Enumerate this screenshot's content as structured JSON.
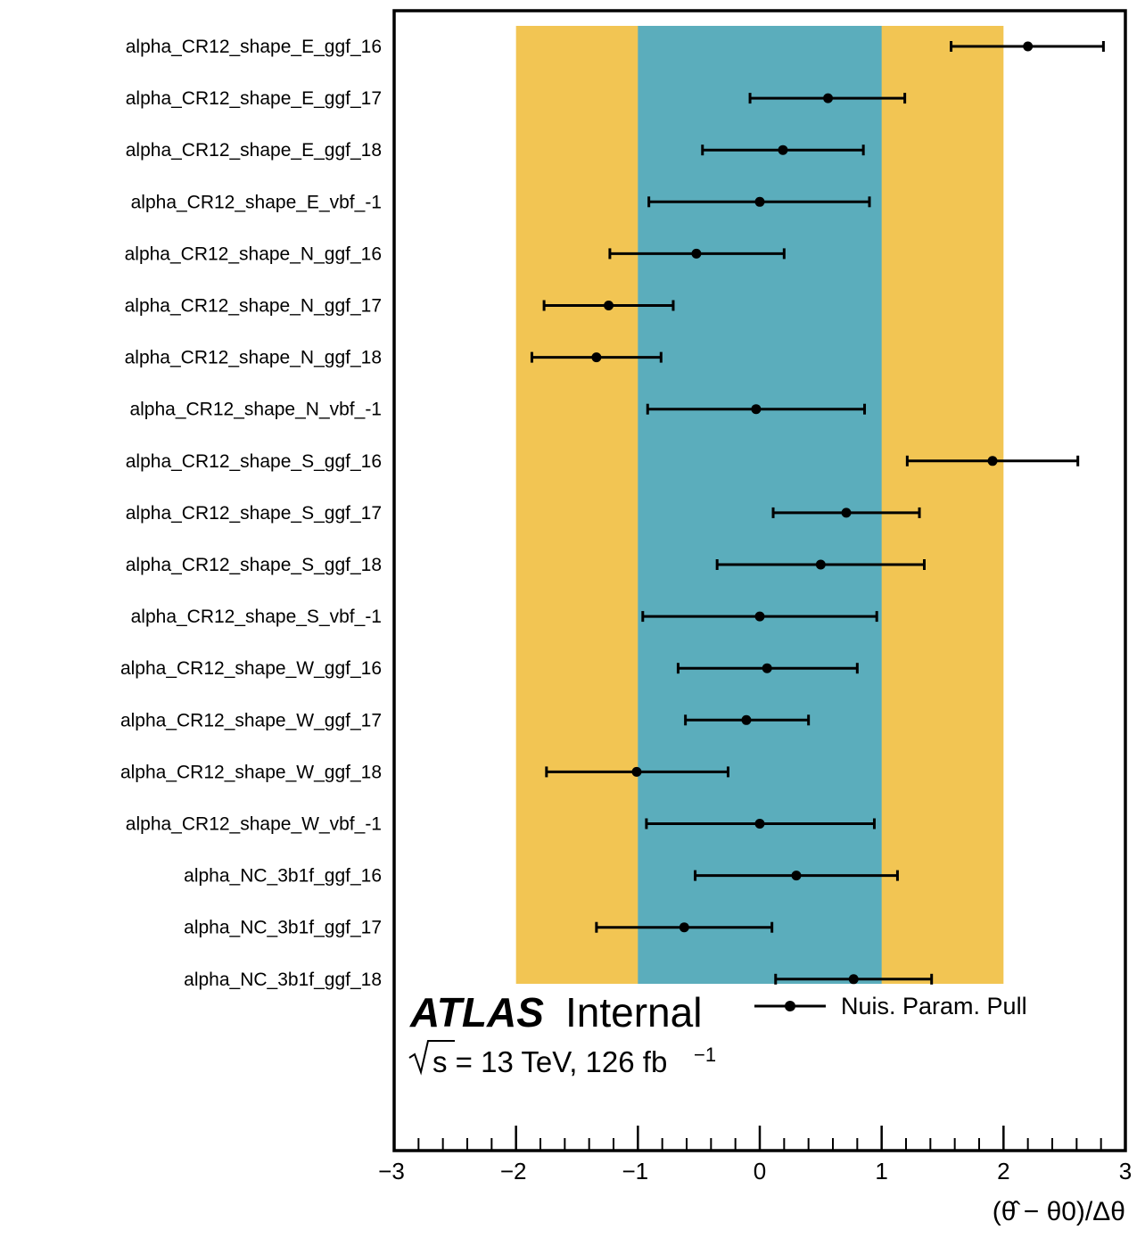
{
  "chart_data": {
    "type": "scatter",
    "subtype": "nuisance-parameter-pulls",
    "xlabel": "(θ̂ − θ0)/Δθ",
    "xlim": [
      -3,
      3
    ],
    "x_ticks": [
      "−3",
      "−2",
      "−1",
      "0",
      "1",
      "2",
      "3"
    ],
    "x_tick_values": [
      -3,
      -2,
      -1,
      0,
      1,
      2,
      3
    ],
    "bands": [
      {
        "range": [
          -2,
          2
        ],
        "color": "#f2c553",
        "meaning": "±2σ"
      },
      {
        "range": [
          -1,
          1
        ],
        "color": "#5badbc",
        "meaning": "±1σ"
      }
    ],
    "parameters": [
      {
        "name": "alpha_CR12_shape_E_ggf_16",
        "pull": 2.2,
        "err_lo": 1.57,
        "err_hi": 2.82
      },
      {
        "name": "alpha_CR12_shape_E_ggf_17",
        "pull": 0.56,
        "err_lo": -0.08,
        "err_hi": 1.19
      },
      {
        "name": "alpha_CR12_shape_E_ggf_18",
        "pull": 0.19,
        "err_lo": -0.47,
        "err_hi": 0.85
      },
      {
        "name": "alpha_CR12_shape_E_vbf_-1",
        "pull": 0.0,
        "err_lo": -0.91,
        "err_hi": 0.9
      },
      {
        "name": "alpha_CR12_shape_N_ggf_16",
        "pull": -0.52,
        "err_lo": -1.23,
        "err_hi": 0.2
      },
      {
        "name": "alpha_CR12_shape_N_ggf_17",
        "pull": -1.24,
        "err_lo": -1.77,
        "err_hi": -0.71
      },
      {
        "name": "alpha_CR12_shape_N_ggf_18",
        "pull": -1.34,
        "err_lo": -1.87,
        "err_hi": -0.81
      },
      {
        "name": "alpha_CR12_shape_N_vbf_-1",
        "pull": -0.03,
        "err_lo": -0.92,
        "err_hi": 0.86
      },
      {
        "name": "alpha_CR12_shape_S_ggf_16",
        "pull": 1.91,
        "err_lo": 1.21,
        "err_hi": 2.61
      },
      {
        "name": "alpha_CR12_shape_S_ggf_17",
        "pull": 0.71,
        "err_lo": 0.11,
        "err_hi": 1.31
      },
      {
        "name": "alpha_CR12_shape_S_ggf_18",
        "pull": 0.5,
        "err_lo": -0.35,
        "err_hi": 1.35
      },
      {
        "name": "alpha_CR12_shape_S_vbf_-1",
        "pull": 0.0,
        "err_lo": -0.96,
        "err_hi": 0.96
      },
      {
        "name": "alpha_CR12_shape_W_ggf_16",
        "pull": 0.06,
        "err_lo": -0.67,
        "err_hi": 0.8
      },
      {
        "name": "alpha_CR12_shape_W_ggf_17",
        "pull": -0.11,
        "err_lo": -0.61,
        "err_hi": 0.4
      },
      {
        "name": "alpha_CR12_shape_W_ggf_18",
        "pull": -1.01,
        "err_lo": -1.75,
        "err_hi": -0.26
      },
      {
        "name": "alpha_CR12_shape_W_vbf_-1",
        "pull": 0.0,
        "err_lo": -0.93,
        "err_hi": 0.94
      },
      {
        "name": "alpha_NC_3b1f_ggf_16",
        "pull": 0.3,
        "err_lo": -0.53,
        "err_hi": 1.13
      },
      {
        "name": "alpha_NC_3b1f_ggf_17",
        "pull": -0.62,
        "err_lo": -1.34,
        "err_hi": 0.1
      },
      {
        "name": "alpha_NC_3b1f_ggf_18",
        "pull": 0.77,
        "err_lo": 0.13,
        "err_hi": 1.41
      }
    ],
    "legend": {
      "placement": "top-right of lower panel",
      "entries": [
        "Nuis. Param. Pull"
      ]
    },
    "annotations": {
      "experiment": "ATLAS",
      "status": "Internal",
      "energy_label": "s = 13 TeV, 126 fb",
      "lumi_exponent": "−1"
    }
  }
}
